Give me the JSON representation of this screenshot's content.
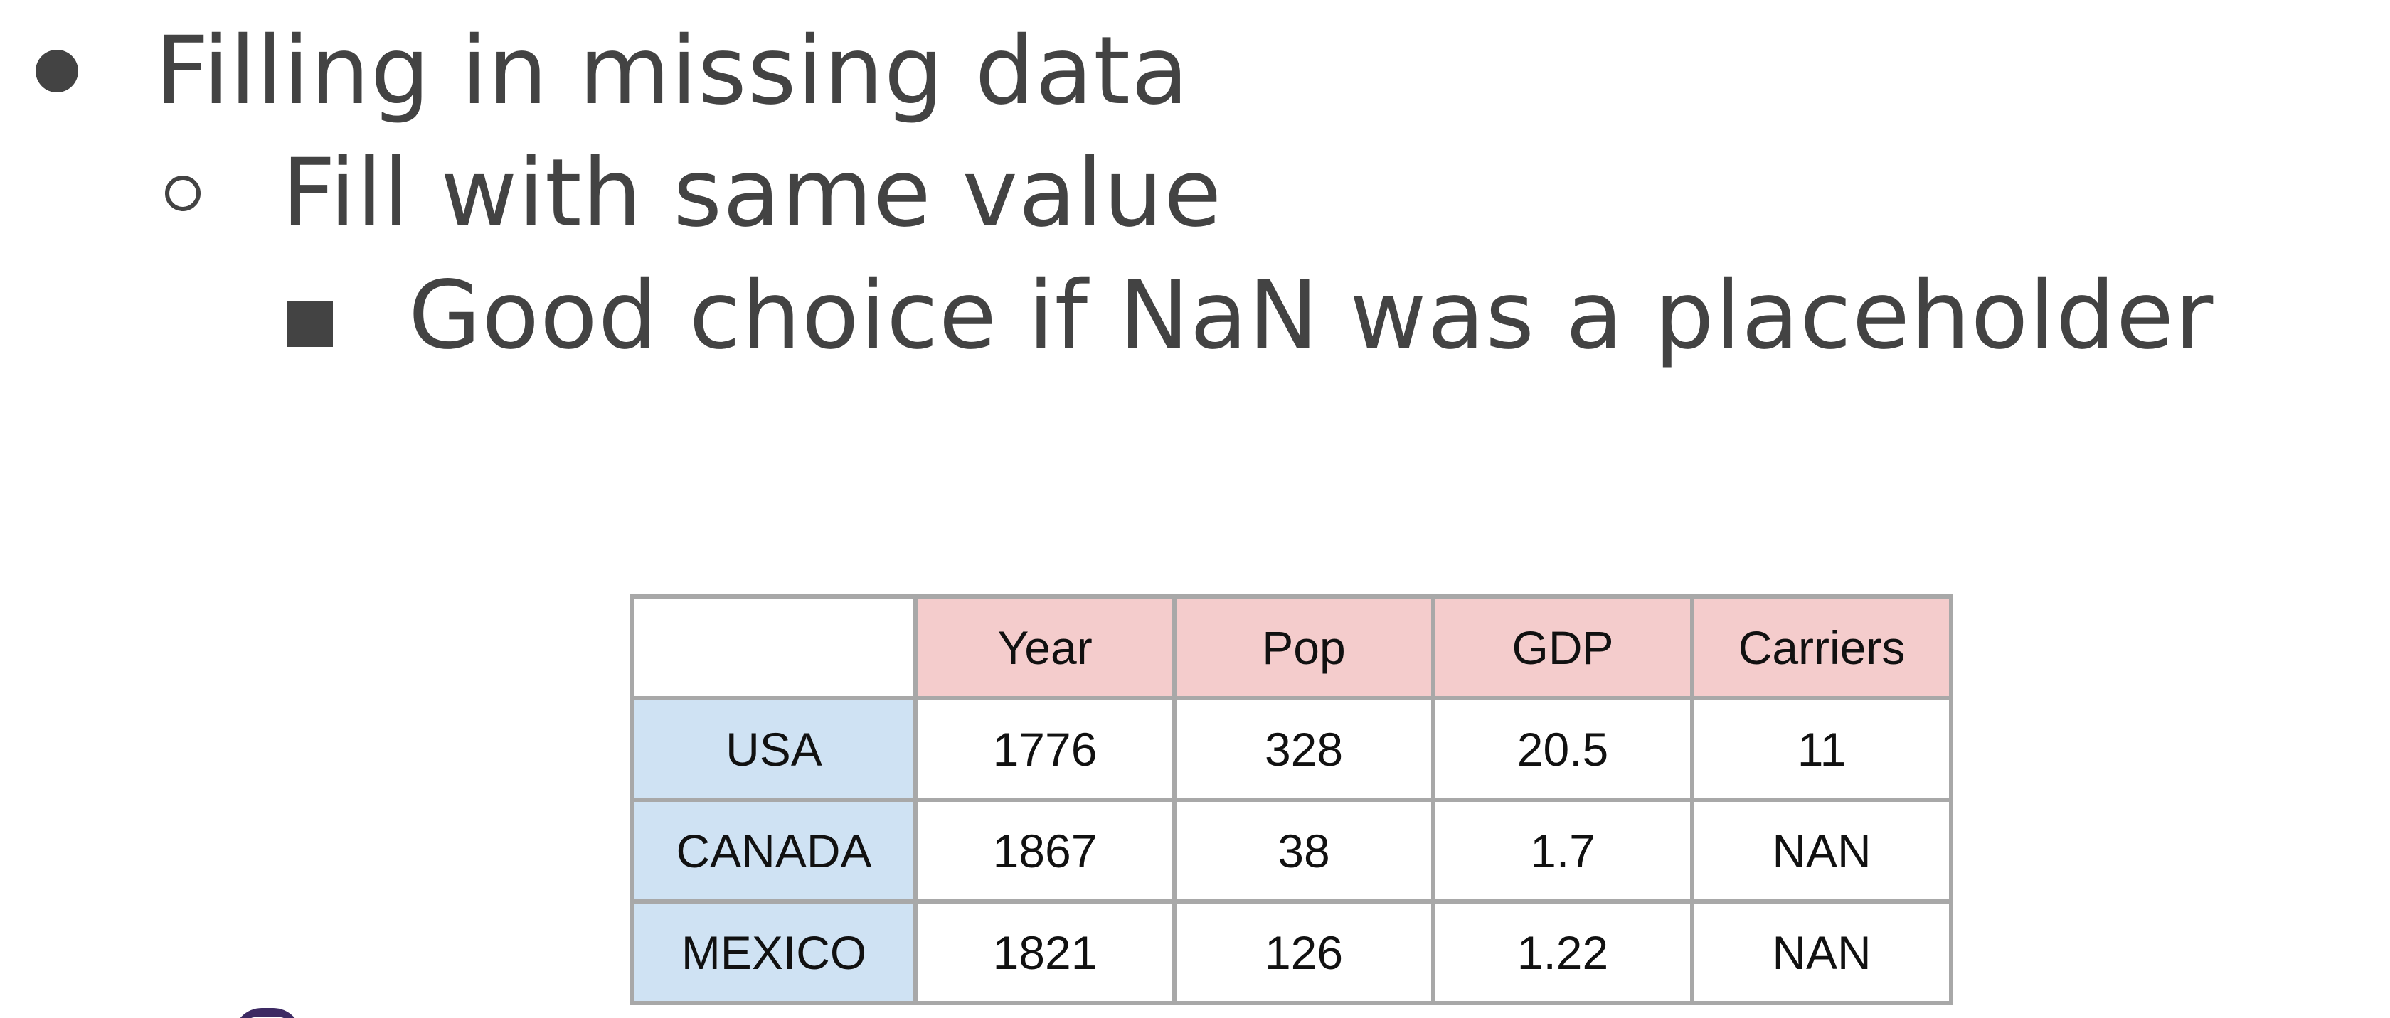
{
  "bullets": [
    {
      "level": 1,
      "marker": "filled-disc",
      "text": "Filling in missing data"
    },
    {
      "level": 2,
      "marker": "hollow-circle",
      "text": "Fill with same value"
    },
    {
      "level": 3,
      "marker": "filled-square",
      "text": "Good choice if NaN was a placeholder"
    }
  ],
  "table": {
    "columns": [
      "",
      "Year",
      "Pop",
      "GDP",
      "Carriers"
    ],
    "rows": [
      {
        "label": "USA",
        "cells": [
          "1776",
          "328",
          "20.5",
          "11"
        ]
      },
      {
        "label": "CANADA",
        "cells": [
          "1867",
          "38",
          "1.7",
          "NAN"
        ]
      },
      {
        "label": "MEXICO",
        "cells": [
          "1821",
          "126",
          "1.22",
          "NAN"
        ]
      }
    ]
  },
  "colors": {
    "text": "#434343",
    "column_header_bg": "#f4cccc",
    "row_header_bg": "#cfe2f3",
    "table_border": "#a8a8a8"
  }
}
